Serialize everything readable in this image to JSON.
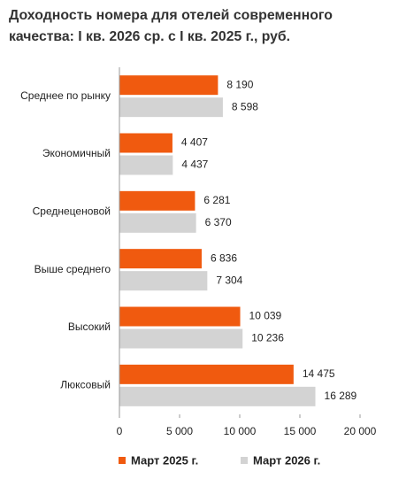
{
  "chart_data": {
    "type": "bar",
    "title": [
      "Доходность номера для отелей современного",
      "качества: I кв. 2026 ср. с I кв. 2025 г., руб."
    ],
    "categories": [
      "Среднее по рынку",
      "Экономичный",
      "Среднеценовой",
      "Выше среднего",
      "Высокий",
      "Люксовый"
    ],
    "series": [
      {
        "name": "Март 2025 г.",
        "color": "#f05a0f",
        "values": [
          8190,
          4407,
          6281,
          6836,
          10039,
          14475
        ],
        "value_labels": [
          "8 190",
          "4 407",
          "6 281",
          "6 836",
          "10 039",
          "14 475"
        ]
      },
      {
        "name": "Март 2026 г.",
        "color": "#d3d3d3",
        "values": [
          8598,
          4437,
          6370,
          7304,
          10236,
          16289
        ],
        "value_labels": [
          "8 598",
          "4 437",
          "6 370",
          "7 304",
          "10 236",
          "16 289"
        ]
      }
    ],
    "xlim": [
      0,
      20000
    ],
    "xticks": [
      0,
      {
        "value": 5000,
        "label": "5 000"
      },
      {
        "value": 10000,
        "label": "10 000"
      },
      {
        "value": 15000,
        "label": "15 000"
      },
      {
        "value": 20000,
        "label": "20 000"
      }
    ]
  }
}
